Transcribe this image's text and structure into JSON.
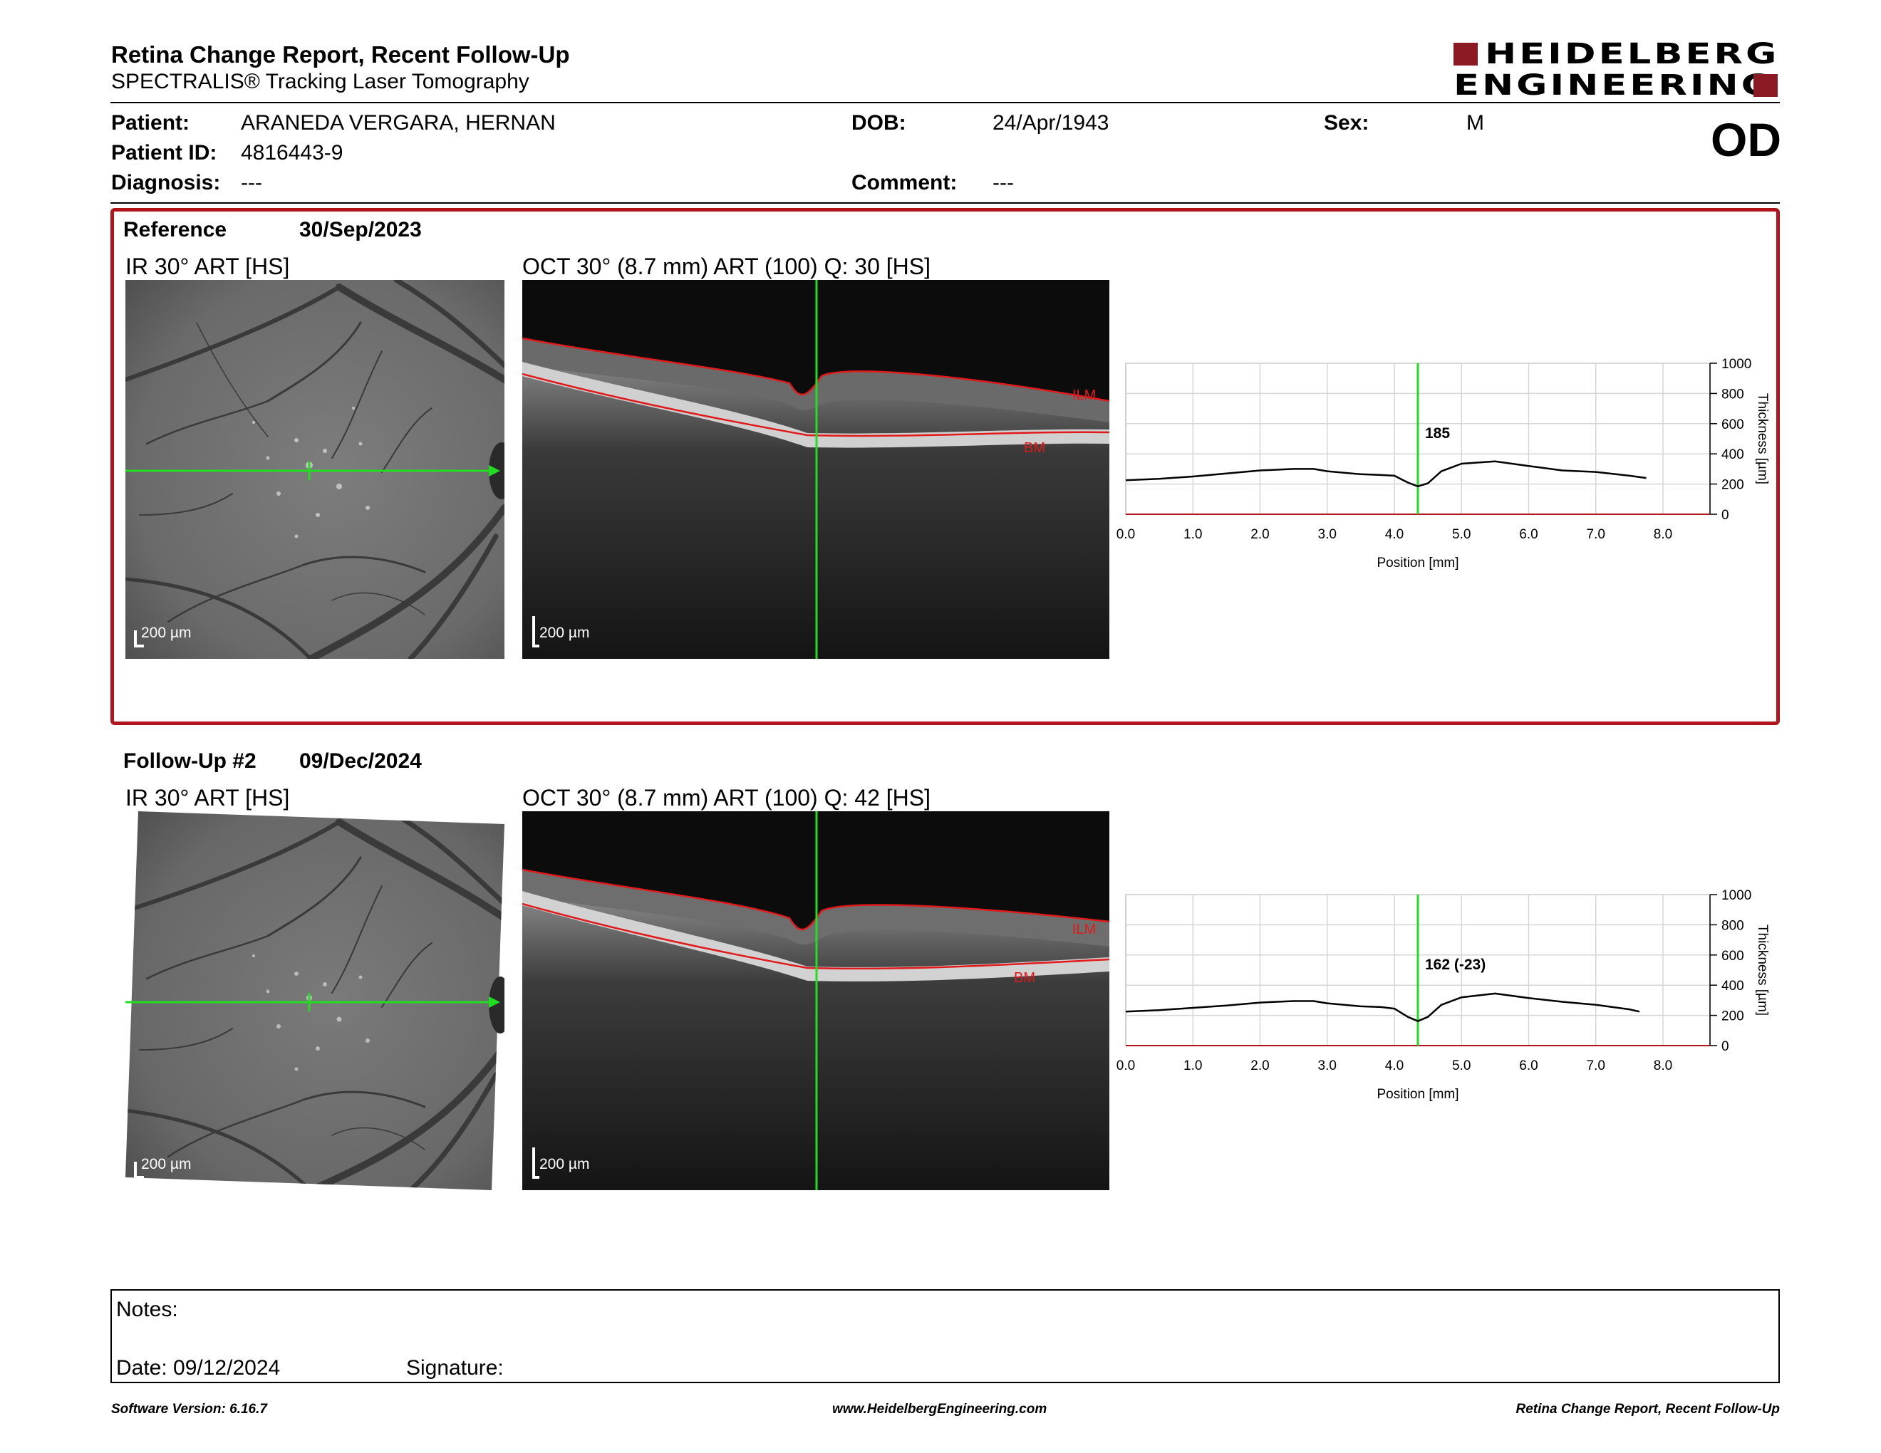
{
  "header": {
    "title": "Retina Change Report, Recent Follow-Up",
    "subtitle": "SPECTRALIS® Tracking Laser Tomography",
    "logo_line1": "HEIDELBERG",
    "logo_line2": "ENGINEERING",
    "eye": "OD"
  },
  "patient": {
    "name_label": "Patient:",
    "name": "ARANEDA VERGARA, HERNAN",
    "id_label": "Patient ID:",
    "id": "4816443-9",
    "diagnosis_label": "Diagnosis:",
    "diagnosis": "---",
    "dob_label": "DOB:",
    "dob": "24/Apr/1943",
    "comment_label": "Comment:",
    "comment": "---",
    "sex_label": "Sex:",
    "sex": "M"
  },
  "reference": {
    "label": "Reference",
    "date": "30/Sep/2023",
    "ir_title": "IR 30° ART [HS]",
    "oct_title": "OCT 30° (8.7 mm) ART (100) Q: 30 [HS]",
    "ir_scale": "200 µm",
    "oct_scale": "200 µm",
    "ilm_label": "ILM",
    "bm_label": "BM"
  },
  "followup": {
    "label": "Follow-Up #2",
    "date": "09/Dec/2024",
    "ir_title": "IR 30° ART [HS]",
    "oct_title": "OCT 30° (8.7 mm) ART (100) Q: 42 [HS]",
    "ir_scale": "200 µm",
    "oct_scale": "200 µm",
    "ilm_label": "ILM",
    "bm_label": "BM"
  },
  "chart_data": [
    {
      "type": "line",
      "xlabel": "Position [mm]",
      "ylabel": "Thickness [µm]",
      "xlim": [
        0,
        8.7
      ],
      "ylim": [
        0,
        1000
      ],
      "xticks": [
        "0.0",
        "1.0",
        "2.0",
        "3.0",
        "4.0",
        "5.0",
        "6.0",
        "7.0",
        "8.0"
      ],
      "yticks": [
        "0",
        "200",
        "400",
        "600",
        "800",
        "1000"
      ],
      "cursor_x": 4.35,
      "cursor_label": "185",
      "series": [
        {
          "x": [
            0.0,
            0.5,
            1.0,
            1.5,
            2.0,
            2.5,
            2.8,
            3.0,
            3.5,
            3.8,
            4.0,
            4.2,
            4.35,
            4.5,
            4.7,
            5.0,
            5.5,
            6.0,
            6.5,
            7.0,
            7.5,
            7.75
          ],
          "values": [
            225,
            235,
            250,
            270,
            290,
            300,
            300,
            285,
            265,
            260,
            255,
            210,
            185,
            205,
            285,
            335,
            350,
            320,
            290,
            280,
            255,
            240
          ]
        }
      ]
    },
    {
      "type": "line",
      "xlabel": "Position [mm]",
      "ylabel": "Thickness [µm]",
      "xlim": [
        0,
        8.7
      ],
      "ylim": [
        0,
        1000
      ],
      "xticks": [
        "0.0",
        "1.0",
        "2.0",
        "3.0",
        "4.0",
        "5.0",
        "6.0",
        "7.0",
        "8.0"
      ],
      "yticks": [
        "0",
        "200",
        "400",
        "600",
        "800",
        "1000"
      ],
      "cursor_x": 4.35,
      "cursor_label": "162 (-23)",
      "series": [
        {
          "x": [
            0.0,
            0.5,
            1.0,
            1.5,
            2.0,
            2.5,
            2.8,
            3.0,
            3.5,
            3.8,
            4.0,
            4.2,
            4.35,
            4.5,
            4.7,
            5.0,
            5.5,
            6.0,
            6.5,
            7.0,
            7.5,
            7.65
          ],
          "values": [
            225,
            235,
            250,
            265,
            285,
            295,
            295,
            280,
            260,
            255,
            245,
            190,
            162,
            190,
            270,
            320,
            345,
            315,
            290,
            270,
            240,
            225
          ]
        }
      ]
    }
  ],
  "notes": {
    "notes_label": "Notes:",
    "date_label": "Date: 09/12/2024",
    "signature_label": "Signature:"
  },
  "footer": {
    "software": "Software Version: 6.16.7",
    "website": "www.HeidelbergEngineering.com",
    "report_name": "Retina Change Report, Recent Follow-Up"
  }
}
